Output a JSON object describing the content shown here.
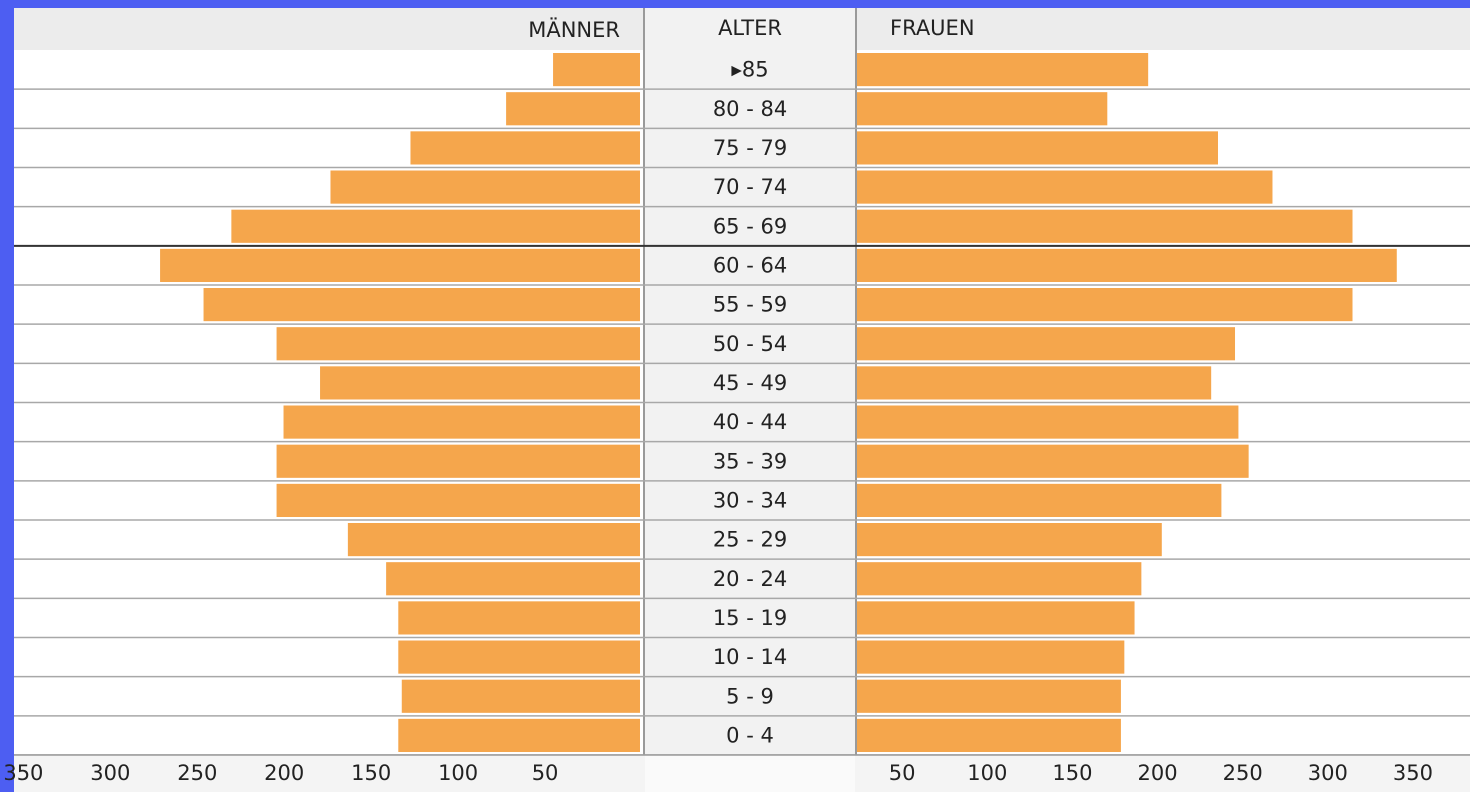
{
  "chart_data": {
    "type": "pyramid",
    "category_label": "ALTER",
    "categories": [
      "▸85",
      "80 - 84",
      "75 - 79",
      "70 - 74",
      "65 - 69",
      "60 - 64",
      "55 - 59",
      "50 - 54",
      "45 - 49",
      "40 - 44",
      "35 - 39",
      "30 - 34",
      "25 - 29",
      "20 - 24",
      "15 - 19",
      "10 - 14",
      "5 - 9",
      "0 - 4"
    ],
    "series": [
      {
        "name": "MÄNNER",
        "color": "#f5a64c",
        "values": [
          50,
          77,
          132,
          178,
          235,
          276,
          251,
          209,
          184,
          205,
          209,
          209,
          168,
          146,
          139,
          139,
          137,
          139
        ]
      },
      {
        "name": "FRAUEN",
        "color": "#f5a64c",
        "values": [
          171,
          147,
          212,
          244,
          291,
          317,
          291,
          222,
          208,
          224,
          230,
          214,
          179,
          167,
          163,
          157,
          155,
          155
        ]
      }
    ],
    "xlim": [
      0,
      360
    ],
    "xticks": [
      50,
      100,
      150,
      200,
      250,
      300,
      350
    ]
  }
}
